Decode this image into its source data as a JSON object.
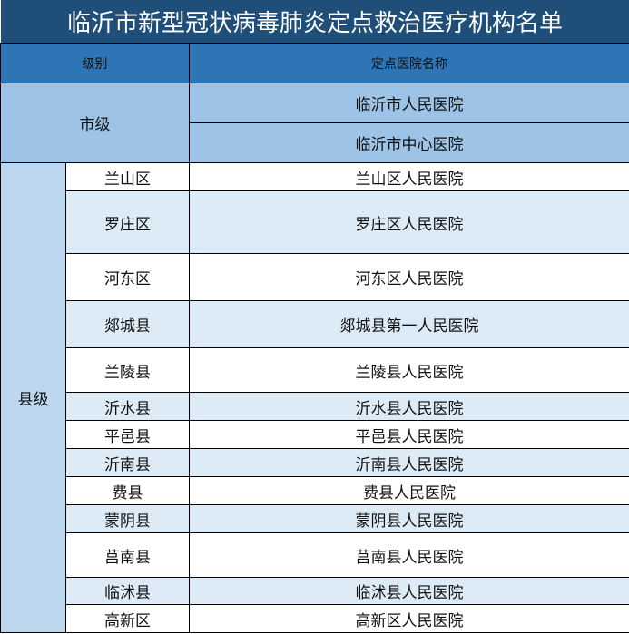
{
  "title": "临沂市新型冠状病毒肺炎定点救治医疗机构名单",
  "headers": {
    "level": "级别",
    "hospital": "定点医院名称"
  },
  "city": {
    "level": "市级",
    "hospitals": [
      "临沂市人民医院",
      "临沂市中心医院"
    ]
  },
  "county": {
    "level": "县级",
    "rows": [
      {
        "district": "兰山区",
        "hospital": "兰山区人民医院"
      },
      {
        "district": "罗庄区",
        "hospital": "罗庄区人民医院"
      },
      {
        "district": "河东区",
        "hospital": "河东区人民医院"
      },
      {
        "district": "郯城县",
        "hospital": "郯城县第一人民医院"
      },
      {
        "district": "兰陵县",
        "hospital": "兰陵县人民医院"
      },
      {
        "district": "沂水县",
        "hospital": "沂水县人民医院"
      },
      {
        "district": "平邑县",
        "hospital": "平邑县人民医院"
      },
      {
        "district": "沂南县",
        "hospital": "沂南县人民医院"
      },
      {
        "district": "费县",
        "hospital": "费县人民医院"
      },
      {
        "district": "蒙阴县",
        "hospital": "蒙阴县人民医院"
      },
      {
        "district": "莒南县",
        "hospital": "莒南县人民医院"
      },
      {
        "district": "临沭县",
        "hospital": "临沭县人民医院"
      },
      {
        "district": "高新区",
        "hospital": "高新区人民医院"
      }
    ]
  },
  "colors": {
    "title_bg": "#1f4e79",
    "header_bg": "#2e75b6",
    "city_bg": "#9dc3e6",
    "county_bg": "#bdd7ee",
    "row_alt": "#ddebf7"
  }
}
